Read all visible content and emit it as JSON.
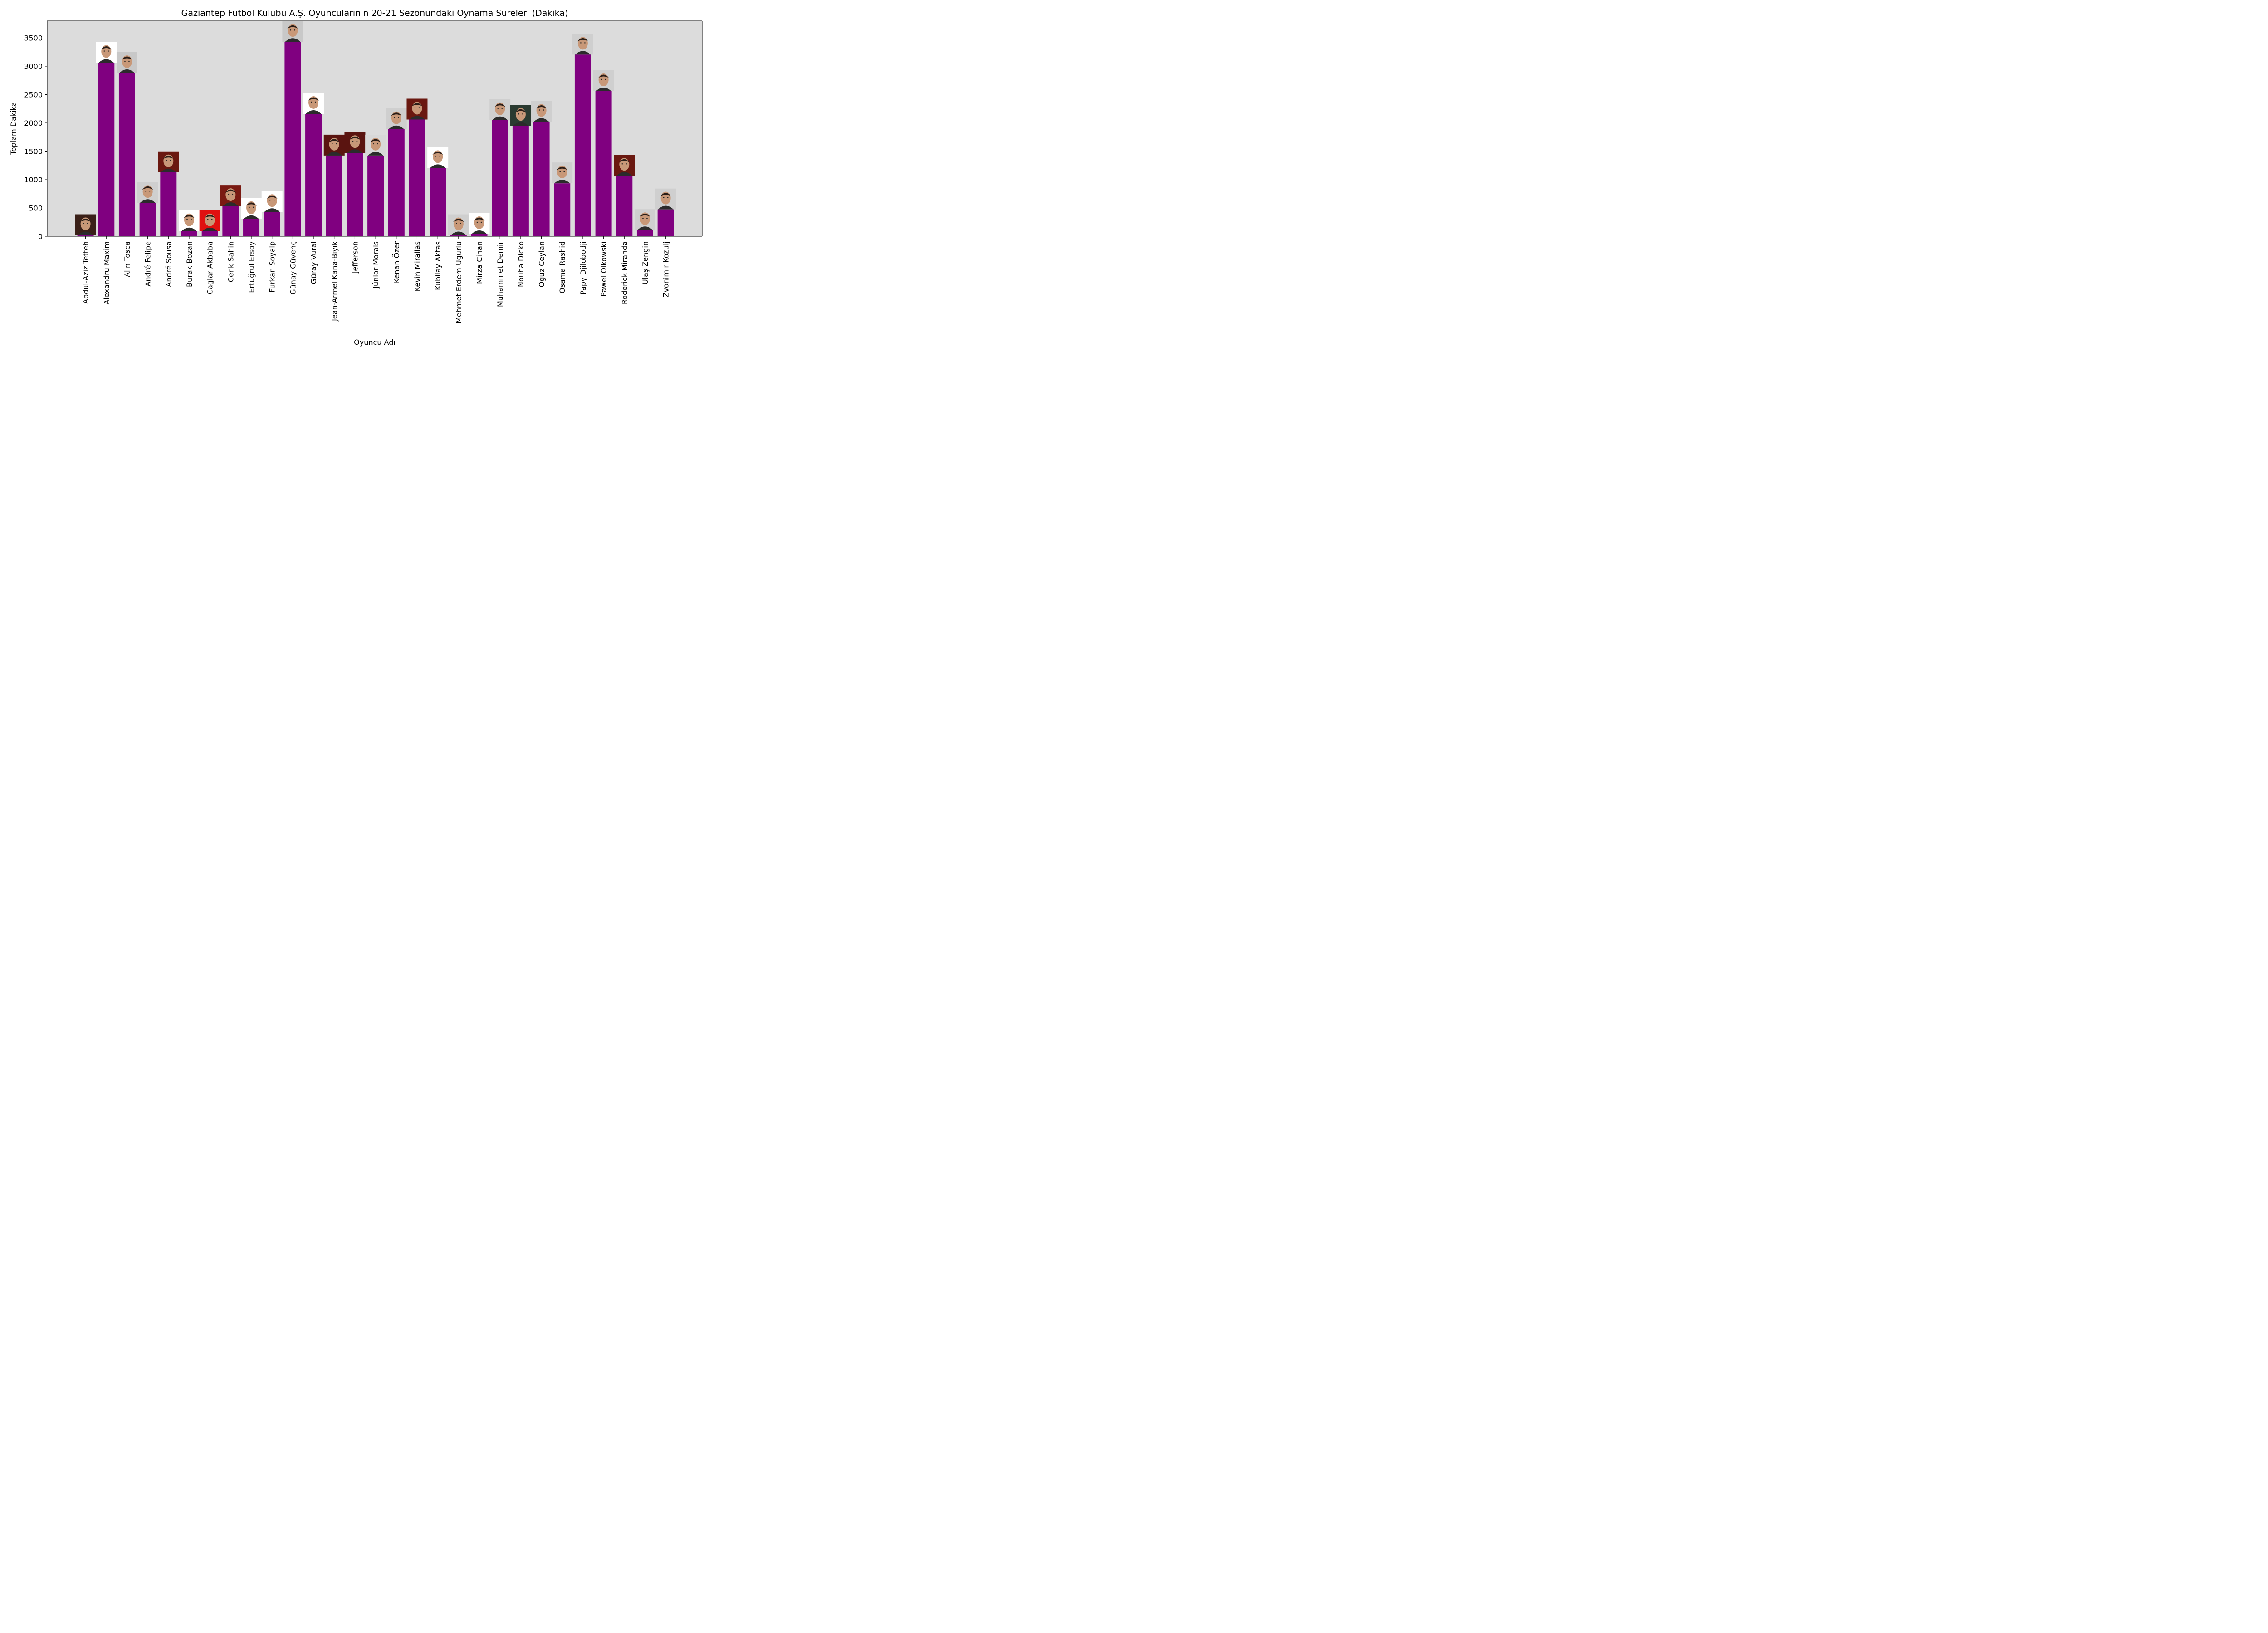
{
  "chart_data": {
    "type": "bar",
    "title": "Gaziantep Futbol Kulübü A.Ş. Oyuncularının 20-21 Sezonundaki Oynama Süreleri (Dakika)",
    "xlabel": "Oyuncu Adı",
    "ylabel": "Toplam Dakika",
    "ylim": [
      0,
      3800
    ],
    "yticks": [
      0,
      500,
      1000,
      1500,
      2000,
      2500,
      3000,
      3500
    ],
    "grid": false,
    "bar_color": "#800080",
    "plot_background": "#dcdcdc",
    "categories": [
      "Abdul-Aziz Tetteh",
      "Alexandru Maxim",
      "Alin Tosca",
      "André Felipe",
      "André Sousa",
      "Burak Bozan",
      "Caglar Akbaba",
      "Cenk Sahin",
      "Ertuğrul Ersoy",
      "Furkan Soyalp",
      "Günay Güvenç",
      "Güray Vural",
      "Jean-Armel Kana-Biyik",
      "Jefferson",
      "Júnior Morais",
      "Kenan Özer",
      "Kevin Mirallas",
      "Kubilay Aktas",
      "Mehmet Erdem Ugurlu",
      "Mirza Cihan",
      "Muhammet Demir",
      "Nouha Dicko",
      "Oguz Ceylan",
      "Osama Rashid",
      "Papy Djilobodji",
      "Pawel Olkowski",
      "Roderick Miranda",
      "Ulaş Zengin",
      "Zvonimir Kozulj"
    ],
    "values": [
      20,
      3060,
      2880,
      590,
      1130,
      90,
      90,
      535,
      305,
      430,
      3430,
      2160,
      1425,
      1470,
      1425,
      1890,
      2060,
      1205,
      20,
      40,
      2050,
      1950,
      2020,
      935,
      3205,
      2560,
      1070,
      110,
      475
    ],
    "photo_backgrounds": [
      "#3a2018",
      "#ffffff",
      "#c8c8c8",
      "#cfcfcf",
      "#6a1810",
      "#ffffff",
      "#e01010",
      "#7a1a12",
      "#ffffff",
      "#ffffff",
      "#c8c8c8",
      "#ffffff",
      "#5a1410",
      "#5a1410",
      "#d8d8d8",
      "#cfcfcf",
      "#6a1810",
      "#ffffff",
      "#cfcfcf",
      "#ffffff",
      "#cfcfcf",
      "#2a3a30",
      "#cfcfcf",
      "#cfcfcf",
      "#cfcfcf",
      "#cfcfcf",
      "#6a1810",
      "#cfcfcf",
      "#cfcfcf"
    ]
  }
}
